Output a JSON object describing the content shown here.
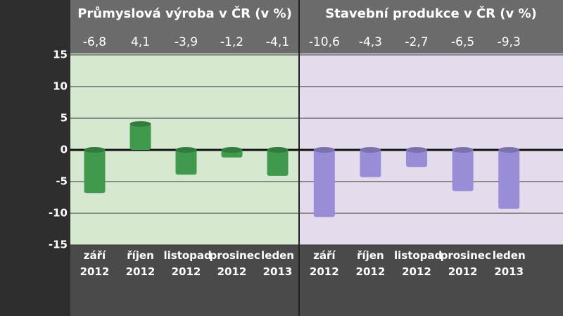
{
  "chart_data": [
    {
      "type": "bar",
      "title": "Průmyslová výroba v ČR (v %)",
      "categories": [
        "září 2012",
        "říjen 2012",
        "listopad 2012",
        "prosinec 2012",
        "leden 2013"
      ],
      "values": [
        -6.8,
        4.1,
        -3.9,
        -1.2,
        -4.1
      ],
      "value_labels": [
        "-6,8",
        "4,1",
        "-3,9",
        "-1,2",
        "-4,1"
      ],
      "color": "#3f9a4d",
      "ylim": [
        -15,
        15
      ],
      "yticks": [
        -15,
        -10,
        -5,
        0,
        5,
        10,
        15
      ],
      "grid": true
    },
    {
      "type": "bar",
      "title": "Stavební produkce v ČR (v %)",
      "categories": [
        "září 2012",
        "říjen 2012",
        "listopad 2012",
        "prosinec 2012",
        "leden 2013"
      ],
      "values": [
        -10.6,
        -4.3,
        -2.7,
        -6.5,
        -9.3
      ],
      "value_labels": [
        "-10,6",
        "-4,3",
        "-2,7",
        "-6,5",
        "-9,3"
      ],
      "color": "#9a8dd8",
      "ylim": [
        -15,
        15
      ],
      "yticks": [
        -15,
        -10,
        -5,
        0,
        5,
        10,
        15
      ],
      "grid": true
    }
  ]
}
